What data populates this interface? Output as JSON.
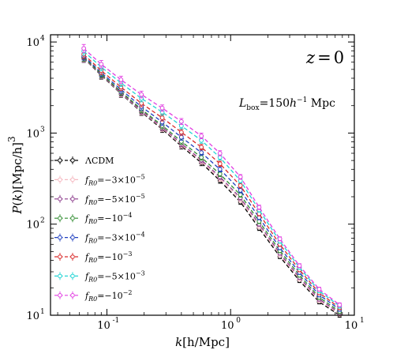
{
  "chart_data": {
    "type": "line",
    "xscale": "log",
    "yscale": "log",
    "xlim": [
      0.035,
      10
    ],
    "ylim": [
      10,
      12000
    ],
    "xlabel": "k[h/Mpc]",
    "ylabel": "P(k)[Mpc/h]^3",
    "grid": false,
    "legend_position": "lower-left",
    "x_tick_labels": [
      "10",
      "10",
      "10"
    ],
    "x_tick_exponents": [
      "-1",
      "0",
      "1"
    ],
    "y_tick_labels": [
      "10",
      "10",
      "10",
      "10"
    ],
    "y_tick_exponents": [
      "1",
      "2",
      "3",
      "4"
    ],
    "annotations": {
      "redshift": "z = 0",
      "box": "L_box = 150 h^-1 Mpc"
    },
    "k": [
      0.065,
      0.09,
      0.13,
      0.19,
      0.28,
      0.4,
      0.58,
      0.82,
      1.2,
      1.7,
      2.5,
      3.6,
      5.2,
      7.6
    ],
    "series": [
      {
        "name": "ΛCDM",
        "color": "#000000",
        "values": [
          6600,
          4300,
          2700,
          1700,
          1100,
          720,
          470,
          300,
          175,
          90,
          44,
          24,
          14,
          10
        ]
      },
      {
        "name": "f_R0 = -3×10^-5",
        "color": "#f5b8c0",
        "values": [
          6650,
          4350,
          2740,
          1730,
          1130,
          740,
          488,
          315,
          185,
          95,
          46,
          25,
          14.5,
          10.3
        ]
      },
      {
        "name": "f_R0 = -5×10^-5",
        "color": "#8b3a8b",
        "values": [
          6700,
          4380,
          2780,
          1760,
          1160,
          765,
          505,
          330,
          195,
          100,
          48,
          26,
          15,
          10.6
        ]
      },
      {
        "name": "f_R0 = -10^-4",
        "color": "#2e8b2e",
        "values": [
          6800,
          4450,
          2850,
          1820,
          1210,
          810,
          540,
          355,
          210,
          107,
          51,
          27.5,
          15.7,
          11
        ]
      },
      {
        "name": "f_R0 = -3×10^-4",
        "color": "#1f3fbf",
        "values": [
          7000,
          4600,
          3000,
          1950,
          1320,
          900,
          610,
          400,
          235,
          118,
          55,
          29.5,
          16.7,
          11.6
        ]
      },
      {
        "name": "f_R0 = -10^-3",
        "color": "#d92b2b",
        "values": [
          7300,
          4850,
          3200,
          2120,
          1470,
          1020,
          700,
          460,
          265,
          130,
          60,
          31.5,
          17.6,
          12.1
        ]
      },
      {
        "name": "f_R0 = -5×10^-3",
        "color": "#22d4d4",
        "values": [
          7900,
          5300,
          3550,
          2400,
          1700,
          1200,
          830,
          540,
          300,
          143,
          65,
          33.5,
          18.5,
          12.6
        ]
      },
      {
        "name": "f_R0 = -10^-2",
        "color": "#e23ee2",
        "values": [
          8500,
          5700,
          3850,
          2650,
          1880,
          1340,
          930,
          600,
          330,
          153,
          69,
          35,
          19.3,
          13
        ]
      }
    ]
  },
  "legend": [
    {
      "prefix": "ΛCDM",
      "eq": "",
      "value": "",
      "exp": ""
    },
    {
      "prefix": "f",
      "sub": "R0",
      "eq": "=−3×10",
      "exp": "−5"
    },
    {
      "prefix": "f",
      "sub": "R0",
      "eq": "=−5×10",
      "exp": "−5"
    },
    {
      "prefix": "f",
      "sub": "R0",
      "eq": "=−10",
      "exp": "−4"
    },
    {
      "prefix": "f",
      "sub": "R0",
      "eq": "=−3×10",
      "exp": "−4"
    },
    {
      "prefix": "f",
      "sub": "R0",
      "eq": "=−10",
      "exp": "−3"
    },
    {
      "prefix": "f",
      "sub": "R0",
      "eq": "=−5×10",
      "exp": "−3"
    },
    {
      "prefix": "f",
      "sub": "R0",
      "eq": "=−10",
      "exp": "−2"
    }
  ]
}
